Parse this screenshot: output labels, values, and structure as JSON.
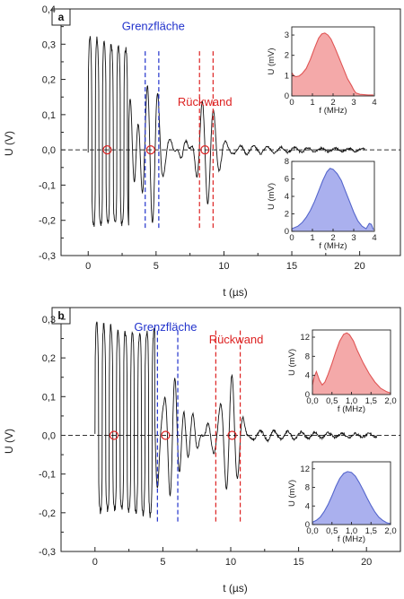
{
  "chart_data": [
    {
      "type": "line",
      "panel_label": "a",
      "xlabel": "t (µs)",
      "ylabel": "U (V)",
      "xlim": [
        -2,
        23
      ],
      "ylim": [
        -0.3,
        0.4
      ],
      "x_ticks": [
        0,
        5,
        10,
        15,
        20
      ],
      "y_ticks": [
        -0.3,
        -0.2,
        -0.1,
        0.0,
        0.1,
        0.2,
        0.3,
        0.4
      ],
      "tick_labels_x": [
        "0",
        "5",
        "10",
        "15",
        "20"
      ],
      "tick_labels_y": [
        "-0,3",
        "-0,2",
        "-0,1",
        "0,0",
        "0,1",
        "0,2",
        "0,3",
        "0,4"
      ],
      "baseline": 0,
      "annotations": [
        {
          "text": "Grenzfläche",
          "color": "#2233cc",
          "x": 4.8,
          "y": 0.34
        },
        {
          "text": "Rückwand",
          "color": "#dd2222",
          "x": 8.6,
          "y": 0.125
        }
      ],
      "gates": [
        {
          "color": "#2233cc",
          "x": [
            4.2,
            5.2
          ]
        },
        {
          "color": "#dd2222",
          "x": [
            8.2,
            9.2
          ]
        }
      ],
      "zero_markers_x": [
        1.4,
        4.6,
        8.6
      ],
      "signal": {
        "end_time": 20.4,
        "main_burst_end": 3.0,
        "interface_echo_center": 4.8,
        "backwall_echo_center": 8.7,
        "peak_amplitude": 0.33
      },
      "insets": [
        {
          "type": "area",
          "xlabel": "f (MHz)",
          "ylabel": "U (mV)",
          "xlim": [
            0,
            4
          ],
          "ylim": [
            0,
            3.4
          ],
          "x_ticks": [
            0,
            1,
            2,
            3,
            4
          ],
          "y_ticks": [
            0,
            1,
            2,
            3
          ],
          "tick_labels_x": [
            "0",
            "1",
            "2",
            "3",
            "4"
          ],
          "tick_labels_y": [
            "0",
            "1",
            "2",
            "3"
          ],
          "color": "#e05555",
          "fill": "#f4a9a9",
          "x": [
            0,
            0.1,
            0.2,
            0.35,
            0.5,
            0.7,
            0.9,
            1.1,
            1.3,
            1.45,
            1.6,
            1.75,
            1.9,
            2.1,
            2.3,
            2.5,
            2.7,
            2.9,
            3.0,
            3.1,
            3.3,
            3.5,
            3.7,
            3.95
          ],
          "values": [
            1.15,
            1.0,
            0.95,
            0.98,
            1.1,
            1.35,
            1.8,
            2.35,
            2.85,
            3.05,
            3.1,
            3.0,
            2.8,
            2.35,
            1.85,
            1.35,
            0.85,
            0.5,
            0.3,
            0.15,
            0.08,
            0.06,
            0.05,
            0.05
          ]
        },
        {
          "type": "area",
          "xlabel": "f (MHz)",
          "ylabel": "U (mV)",
          "xlim": [
            0,
            4
          ],
          "ylim": [
            0,
            8
          ],
          "x_ticks": [
            0,
            1,
            2,
            3,
            4
          ],
          "y_ticks": [
            0,
            2,
            4,
            6,
            8
          ],
          "tick_labels_x": [
            "0",
            "1",
            "2",
            "3",
            "4"
          ],
          "tick_labels_y": [
            "0",
            "2",
            "4",
            "6",
            "8"
          ],
          "color": "#5566cc",
          "fill": "#aab0ee",
          "x": [
            0,
            0.3,
            0.5,
            0.7,
            0.9,
            1.1,
            1.3,
            1.5,
            1.7,
            1.85,
            2.0,
            2.2,
            2.4,
            2.6,
            2.8,
            3.0,
            3.2,
            3.4,
            3.6,
            3.75,
            3.85,
            3.95
          ],
          "values": [
            0.3,
            0.6,
            1.0,
            1.6,
            2.4,
            3.4,
            4.6,
            5.8,
            6.8,
            7.2,
            7.1,
            6.6,
            5.8,
            4.6,
            3.4,
            2.2,
            1.2,
            0.6,
            0.3,
            0.9,
            0.8,
            0.2
          ]
        }
      ]
    },
    {
      "type": "line",
      "panel_label": "b",
      "xlabel": "t (µs)",
      "ylabel": "U (V)",
      "xlim": [
        -2.5,
        22.5
      ],
      "ylim": [
        -0.3,
        0.33
      ],
      "x_ticks": [
        0,
        5,
        10,
        15,
        20
      ],
      "y_ticks": [
        -0.3,
        -0.2,
        -0.1,
        0.0,
        0.1,
        0.2,
        0.3
      ],
      "tick_labels_x": [
        "0",
        "5",
        "10",
        "15",
        "20"
      ],
      "tick_labels_y": [
        "-0,3",
        "-0,2",
        "-0,1",
        "0,0",
        "0,1",
        "0,2",
        "0,3"
      ],
      "baseline": 0,
      "annotations": [
        {
          "text": "Grenzfläche",
          "color": "#2233cc",
          "x": 5.2,
          "y": 0.27
        },
        {
          "text": "Rückwand",
          "color": "#dd2222",
          "x": 10.4,
          "y": 0.237
        }
      ],
      "gates": [
        {
          "color": "#2233cc",
          "x": [
            4.6,
            6.1
          ]
        },
        {
          "color": "#dd2222",
          "x": [
            8.9,
            10.7
          ]
        }
      ],
      "zero_markers_x": [
        1.4,
        5.2,
        10.1
      ],
      "signal": {
        "end_time": 20.8,
        "main_burst_end": 4.4,
        "interface_echo_center": 5.6,
        "backwall_echo_center": 10.0,
        "peak_amplitude": 0.3
      },
      "insets": [
        {
          "type": "area",
          "xlabel": "f (MHz)",
          "ylabel": "U (mV)",
          "xlim": [
            0,
            2.0
          ],
          "ylim": [
            0,
            13.5
          ],
          "x_ticks": [
            0,
            0.5,
            1.0,
            1.5,
            2.0
          ],
          "y_ticks": [
            0,
            4,
            8,
            12
          ],
          "tick_labels_x": [
            "0,0",
            "0,5",
            "1,0",
            "1,5",
            "2,0"
          ],
          "tick_labels_y": [
            "0",
            "4",
            "8",
            "12"
          ],
          "minor_x_labels": [
            "0,0",
            "0,5",
            "1,0",
            "1,5",
            "2,0"
          ],
          "color": "#e05555",
          "fill": "#f4a9a9",
          "x": [
            0,
            0.05,
            0.1,
            0.18,
            0.25,
            0.32,
            0.4,
            0.5,
            0.6,
            0.7,
            0.8,
            0.88,
            0.95,
            1.05,
            1.15,
            1.3,
            1.45,
            1.6,
            1.75,
            1.9,
            2.0
          ],
          "values": [
            2.0,
            3.8,
            4.8,
            3.0,
            2.0,
            2.6,
            4.2,
            6.5,
            9.0,
            11.2,
            12.6,
            12.9,
            12.5,
            11.2,
            9.2,
            6.6,
            4.4,
            2.6,
            1.3,
            0.6,
            0.3
          ]
        },
        {
          "type": "area",
          "xlabel": "f (MHz)",
          "ylabel": "U (mV)",
          "xlim": [
            0,
            2.0
          ],
          "ylim": [
            0,
            13.5
          ],
          "x_ticks": [
            0,
            0.5,
            1.0,
            1.5,
            2.0
          ],
          "y_ticks": [
            0,
            4,
            8,
            12
          ],
          "tick_labels_x": [
            "0,0",
            "0,5",
            "1,0",
            "1,5",
            "2,0"
          ],
          "tick_labels_y": [
            "0",
            "4",
            "8",
            "12"
          ],
          "color": "#5566cc",
          "fill": "#aab0ee",
          "x": [
            0,
            0.1,
            0.2,
            0.3,
            0.4,
            0.5,
            0.6,
            0.7,
            0.8,
            0.9,
            1.0,
            1.1,
            1.2,
            1.3,
            1.4,
            1.5,
            1.6,
            1.7,
            1.8,
            1.9,
            2.0
          ],
          "values": [
            0.5,
            0.9,
            1.6,
            2.8,
            4.3,
            6.2,
            8.2,
            9.9,
            11.0,
            11.4,
            11.2,
            10.4,
            9.0,
            7.4,
            5.7,
            4.1,
            2.7,
            1.6,
            0.9,
            0.4,
            0.2
          ]
        }
      ]
    }
  ]
}
